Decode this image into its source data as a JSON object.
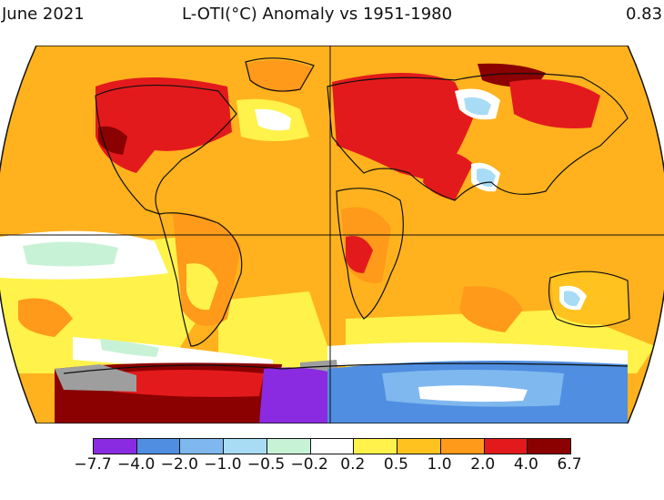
{
  "header": {
    "date_label": "June 2021",
    "title": "L-OTI(°C) Anomaly vs 1951-1980",
    "global_mean": "0.83"
  },
  "map": {
    "projection": "robinson",
    "regions": [
      {
        "id": "north-america-interior",
        "color": "#e31a1c"
      },
      {
        "id": "siberia-west",
        "color": "#e31a1c"
      },
      {
        "id": "east-siberia",
        "color": "#8b0000"
      },
      {
        "id": "middle-east",
        "color": "#e31a1c"
      },
      {
        "id": "antarctic-sector-west",
        "color": "#8b0000"
      },
      {
        "id": "antarctic-sector-east",
        "color": "#4f8ee0"
      },
      {
        "id": "antarctic-peninsula",
        "color": "#8a2be2"
      },
      {
        "id": "no-data",
        "color": "#9e9e9e"
      },
      {
        "id": "pacific-cool",
        "color": "#ffffff"
      },
      {
        "id": "central-asia-cool",
        "color": "#9fd8f0"
      }
    ]
  },
  "legend": {
    "colors": [
      "#8a2be2",
      "#4f8ee0",
      "#7fb8ef",
      "#a8dcf5",
      "#c8f2d6",
      "#ffffff",
      "#fff24a",
      "#ffc21e",
      "#ff9a1a",
      "#e31a1c",
      "#8b0000"
    ],
    "ticks": [
      "−7.7",
      "−4.0",
      "−2.0",
      "−1.0",
      "−0.5",
      "−0.2",
      "0.2",
      "0.5",
      "1.0",
      "2.0",
      "4.0",
      "6.7"
    ]
  }
}
